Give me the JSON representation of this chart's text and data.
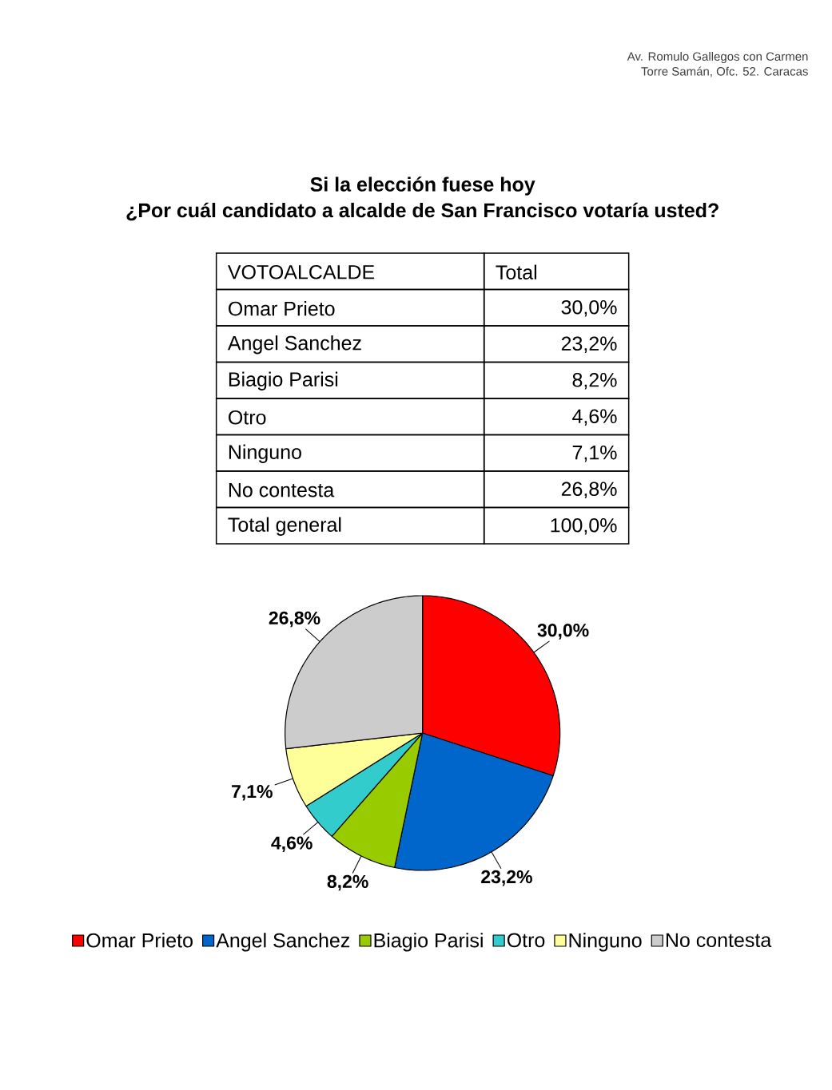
{
  "chart_data": {
    "type": "pie",
    "title": "Si la elección fuese hoy",
    "subtitle": "¿Por cuál candidato a alcalde de San Francisco votaría usted?",
    "categories": [
      "Omar Prieto",
      "Angel Sanchez",
      "Biagio Parisi",
      "Otro",
      "Ninguno",
      "No contesta"
    ],
    "values": [
      30.0,
      23.2,
      8.2,
      4.6,
      7.1,
      26.8
    ],
    "colors": [
      "#ff0000",
      "#0066cc",
      "#99cc00",
      "#33cccc",
      "#ffff99",
      "#cccccc"
    ],
    "value_labels": [
      "30,0%",
      "23,2%",
      "8,2%",
      "4,6%",
      "7,1%",
      "26,8%"
    ],
    "annotations": [
      "VOTOALCALDE",
      "Total",
      "Total general",
      "100,0%",
      "Av. Romulo Gallegos con Carmen",
      "Torre Samán, Ofc. 52. Caracas"
    ],
    "legend": "bottom"
  }
}
